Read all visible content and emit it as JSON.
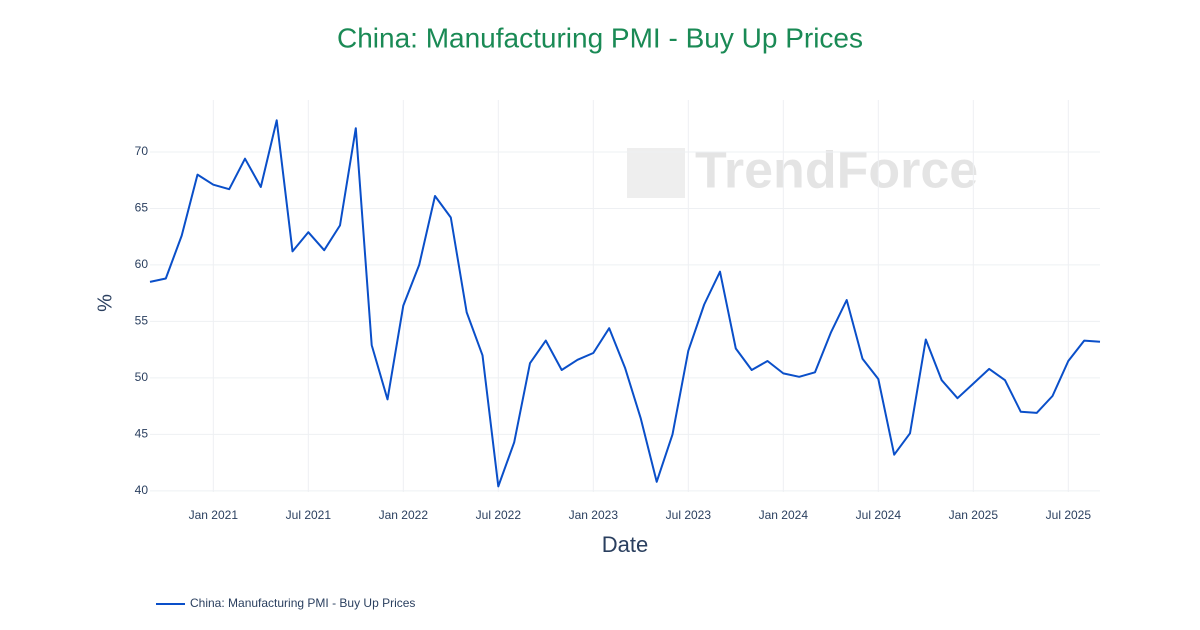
{
  "chart_data": {
    "type": "line",
    "title": "China: Manufacturing PMI - Buy Up Prices",
    "x_label": "Date",
    "y_label": "%",
    "watermark": "TrendForce",
    "x": [
      "2020-09",
      "2020-10",
      "2020-11",
      "2020-12",
      "2021-01",
      "2021-02",
      "2021-03",
      "2021-04",
      "2021-05",
      "2021-06",
      "2021-07",
      "2021-08",
      "2021-09",
      "2021-10",
      "2021-11",
      "2021-12",
      "2022-01",
      "2022-02",
      "2022-03",
      "2022-04",
      "2022-05",
      "2022-06",
      "2022-07",
      "2022-08",
      "2022-09",
      "2022-10",
      "2022-11",
      "2022-12",
      "2023-01",
      "2023-02",
      "2023-03",
      "2023-04",
      "2023-05",
      "2023-06",
      "2023-07",
      "2023-08",
      "2023-09",
      "2023-10",
      "2023-11",
      "2023-12",
      "2024-01",
      "2024-02",
      "2024-03",
      "2024-04",
      "2024-05",
      "2024-06",
      "2024-07",
      "2024-08",
      "2024-09",
      "2024-10",
      "2024-11",
      "2024-12",
      "2025-01",
      "2025-02",
      "2025-03",
      "2025-04",
      "2025-05",
      "2025-06",
      "2025-07",
      "2025-08",
      "2025-09"
    ],
    "series": [
      {
        "name": "China: Manufacturing PMI - Buy Up Prices",
        "color": "#0a4fc9",
        "values": [
          58.5,
          58.8,
          62.6,
          68.0,
          67.1,
          66.7,
          69.4,
          66.9,
          72.8,
          61.2,
          62.9,
          61.3,
          63.5,
          72.1,
          52.9,
          48.1,
          56.4,
          60.0,
          66.1,
          64.2,
          55.8,
          52.0,
          40.4,
          44.3,
          51.3,
          53.3,
          50.7,
          51.6,
          52.2,
          54.4,
          50.9,
          46.4,
          40.8,
          45.0,
          52.4,
          56.5,
          59.4,
          52.6,
          50.7,
          51.5,
          50.4,
          50.1,
          50.5,
          54.0,
          56.9,
          51.7,
          49.9,
          43.2,
          45.1,
          53.4,
          49.8,
          48.2,
          49.5,
          50.8,
          49.8,
          47.0,
          46.9,
          48.4,
          51.5,
          53.3,
          53.2
        ]
      }
    ],
    "xlim": [
      "2020-09",
      "2025-09"
    ],
    "xticks": [
      {
        "value": "2021-01",
        "label": "Jan 2021"
      },
      {
        "value": "2021-07",
        "label": "Jul 2021"
      },
      {
        "value": "2022-01",
        "label": "Jan 2022"
      },
      {
        "value": "2022-07",
        "label": "Jul 2022"
      },
      {
        "value": "2023-01",
        "label": "Jan 2023"
      },
      {
        "value": "2023-07",
        "label": "Jul 2023"
      },
      {
        "value": "2024-01",
        "label": "Jan 2024"
      },
      {
        "value": "2024-07",
        "label": "Jul 2024"
      },
      {
        "value": "2025-01",
        "label": "Jan 2025"
      },
      {
        "value": "2025-07",
        "label": "Jul 2025"
      }
    ],
    "ylim": [
      39.9,
      74.6
    ],
    "yticks": [
      40,
      45,
      50,
      55,
      60,
      65,
      70
    ],
    "grid": true
  }
}
